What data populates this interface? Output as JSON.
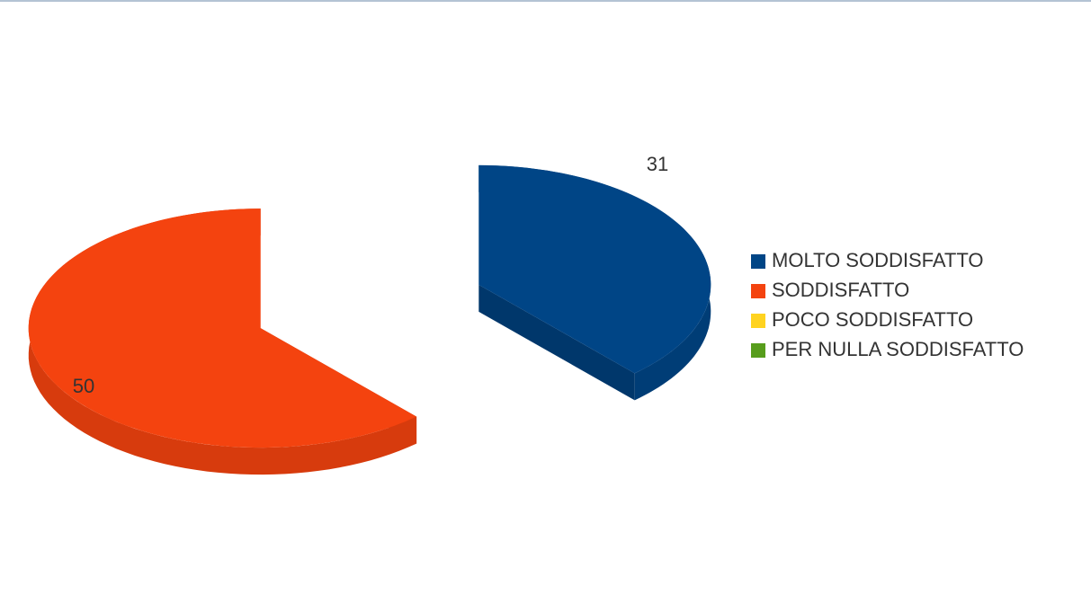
{
  "chart_data": {
    "type": "pie",
    "categories": [
      "MOLTO SODDISFATTO",
      "SODDISFATTO",
      "POCO SODDISFATTO",
      "PER NULLA SODDISFATTO"
    ],
    "values": [
      31,
      50,
      0,
      0
    ],
    "colors": [
      "#004586",
      "#f4430f",
      "#ffd320",
      "#579d1c"
    ],
    "legend": "right"
  }
}
